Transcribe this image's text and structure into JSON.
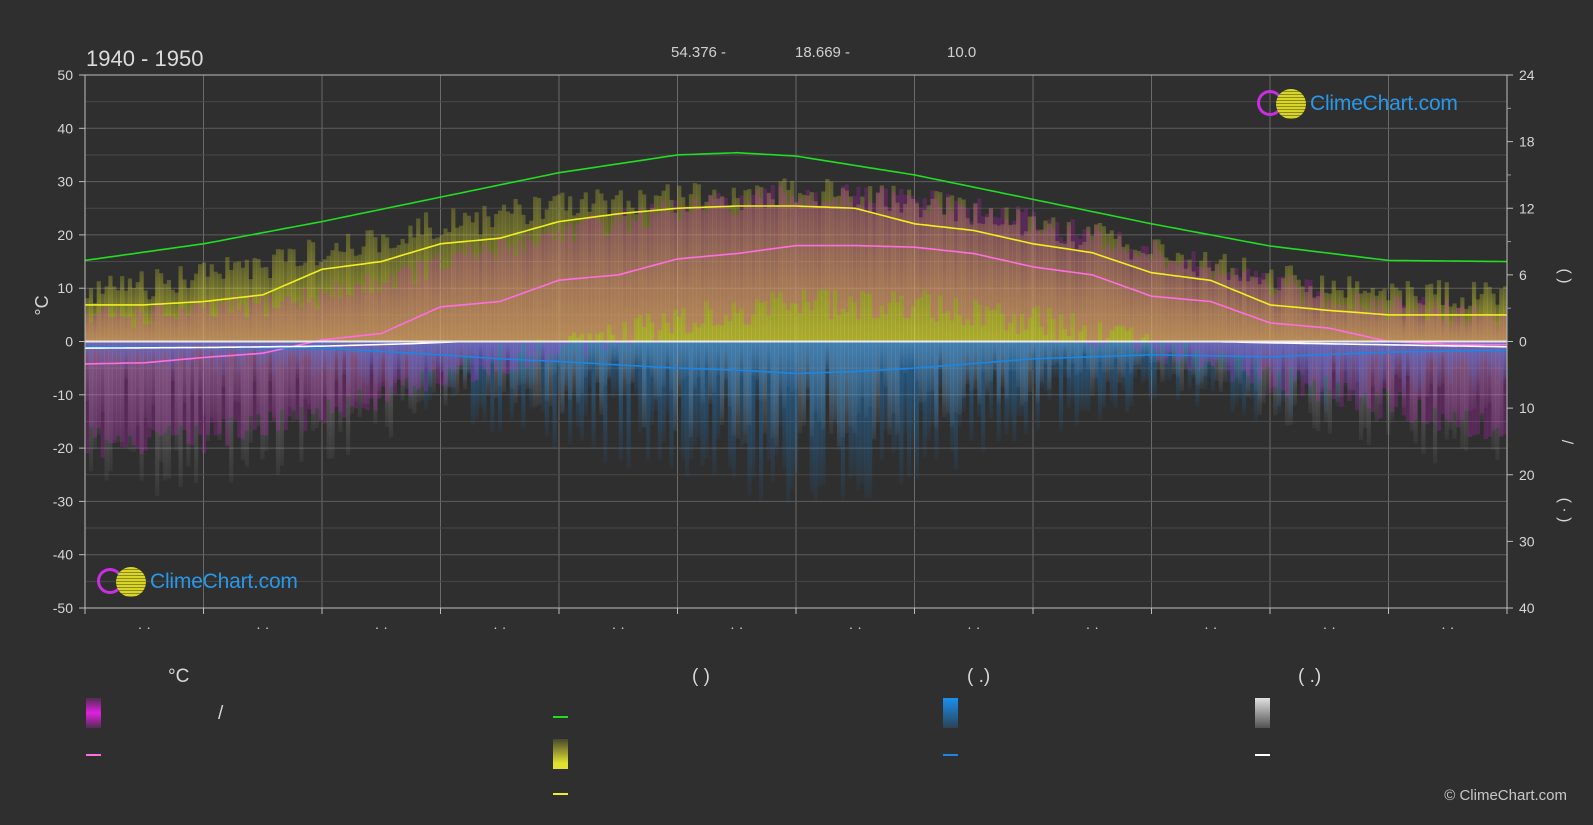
{
  "header": {
    "period": "1940 - 1950",
    "coord_1": "54.376 -",
    "coord_2": "18.669 -",
    "coord_3": "10.0"
  },
  "axes": {
    "left_unit": "°C",
    "left_ticks": [
      50,
      40,
      30,
      20,
      10,
      0,
      -10,
      -20,
      -30,
      -40,
      -50
    ],
    "right_ticks_hours": [
      24,
      18,
      12,
      6,
      0
    ],
    "right_ticks_precip": [
      10,
      20,
      30,
      40
    ],
    "right_label_hours": "(    )",
    "right_label_slash": "/",
    "right_label_precip": "( · )",
    "month_labels": [
      "· ·",
      "· ·",
      "· ·",
      "· ·",
      "· ·",
      "· ·",
      "· ·",
      "· ·",
      "· ·",
      "· ·",
      "· ·",
      "· ·"
    ]
  },
  "legend": {
    "temp_header": "°C",
    "sun_header": "(          )",
    "rain_header": "(   .)",
    "snow_header": "(   .)",
    "temp_range_text": "/",
    "colors": {
      "temp_range": "#e020e0",
      "temp_mean": "#ff6ee0",
      "daylight": "#22dd22",
      "sunshine_band": "#e0e030",
      "sunshine_mean": "#f0f020",
      "rain_band": "#1a8ff0",
      "rain_mean": "#1c86e0",
      "snow_band": "#e0e0e0",
      "snow_mean": "#ffffff"
    }
  },
  "brand": {
    "name": "ClimeChart.com"
  },
  "copyright": "© ClimeChart.com",
  "chart_data": {
    "type": "line",
    "ylim_left": [
      -50,
      50
    ],
    "ylim_right_hours": [
      0,
      24
    ],
    "ylim_right_precip_mm": [
      0,
      40
    ],
    "grid": true,
    "series": [
      {
        "key": "daylight_hours",
        "axis": "hours",
        "color": "#22dd22",
        "x": [
          0,
          1,
          2,
          3,
          4,
          5,
          5.5,
          6,
          7,
          8,
          9,
          10,
          11,
          12
        ],
        "values": [
          7.3,
          8.8,
          10.8,
          13.0,
          15.2,
          16.8,
          17.0,
          16.7,
          15.0,
          12.8,
          10.6,
          8.6,
          7.3,
          7.2
        ]
      },
      {
        "key": "sunshine_hours",
        "axis": "hours",
        "color": "#f0f020",
        "x": [
          0,
          0.5,
          1,
          1.5,
          2,
          2.5,
          3,
          3.5,
          4,
          4.5,
          5,
          5.5,
          6,
          6.5,
          7,
          7.5,
          8,
          8.5,
          9,
          9.5,
          10,
          10.5,
          11,
          11.5,
          12
        ],
        "values": [
          3.3,
          3.3,
          3.6,
          4.2,
          6.5,
          7.2,
          8.8,
          9.3,
          10.8,
          11.5,
          12.0,
          12.2,
          12.2,
          12.0,
          10.6,
          10.0,
          8.8,
          8.0,
          6.2,
          5.5,
          3.3,
          2.8,
          2.4,
          2.4,
          2.4
        ]
      },
      {
        "key": "mean_temperature",
        "axis": "temp",
        "color": "#ff6ee0",
        "x": [
          0,
          0.5,
          1,
          1.5,
          2,
          2.5,
          3,
          3.5,
          4,
          4.5,
          5,
          5.5,
          6,
          6.5,
          7,
          7.5,
          8,
          8.5,
          9,
          9.5,
          10,
          10.5,
          11,
          11.5,
          12
        ],
        "values": [
          -4.2,
          -4.0,
          -3.0,
          -2.2,
          0.3,
          1.5,
          6.5,
          7.5,
          11.5,
          12.5,
          15.5,
          16.5,
          18.0,
          18.0,
          17.7,
          16.5,
          14.0,
          12.5,
          8.5,
          7.5,
          3.5,
          2.5,
          0.0,
          -0.5,
          -0.6
        ]
      },
      {
        "key": "rain_mm",
        "axis": "precip",
        "color": "#1c86e0",
        "x": [
          0,
          1,
          2,
          3,
          3.5,
          4,
          4.5,
          5,
          5.5,
          6,
          6.5,
          7,
          7.5,
          8,
          9,
          10,
          11,
          12
        ],
        "values": [
          0.8,
          0.9,
          1.0,
          2.0,
          2.6,
          3.0,
          3.5,
          4.0,
          4.3,
          4.8,
          4.5,
          4.0,
          3.3,
          2.6,
          2.0,
          2.3,
          1.6,
          1.3
        ]
      },
      {
        "key": "snow_mm",
        "axis": "precip",
        "color": "#ffffff",
        "x": [
          0,
          1,
          2,
          2.8,
          3.2,
          9.5,
          10,
          11,
          12
        ],
        "values": [
          1.0,
          0.9,
          0.7,
          0.3,
          0.0,
          0.0,
          0.2,
          0.5,
          0.8
        ]
      },
      {
        "key": "temp_range_upper",
        "axis": "temp",
        "color": "#e020e0",
        "x": [
          0,
          1,
          2,
          3,
          4,
          5,
          6,
          7,
          8,
          9,
          10,
          11,
          12
        ],
        "values": [
          2,
          3,
          6,
          12,
          18,
          22,
          25,
          24,
          20,
          14,
          8,
          4,
          2
        ]
      },
      {
        "key": "temp_range_lower",
        "axis": "temp",
        "color": "#e020e0",
        "x": [
          0,
          1,
          2,
          3,
          4,
          5,
          6,
          7,
          8,
          9,
          10,
          11,
          12
        ],
        "values": [
          -16,
          -15,
          -11,
          -3,
          2,
          7,
          10,
          10,
          7,
          2,
          -4,
          -9,
          -14
        ]
      },
      {
        "key": "sunshine_band_top",
        "axis": "temp",
        "color": "#e0e030",
        "x": [
          0,
          1,
          2,
          3,
          4,
          5,
          6,
          7,
          8,
          9,
          10,
          11,
          12
        ],
        "values": [
          12,
          15,
          20,
          25,
          28,
          30,
          31,
          29,
          25,
          20,
          15,
          12,
          11
        ]
      }
    ]
  }
}
